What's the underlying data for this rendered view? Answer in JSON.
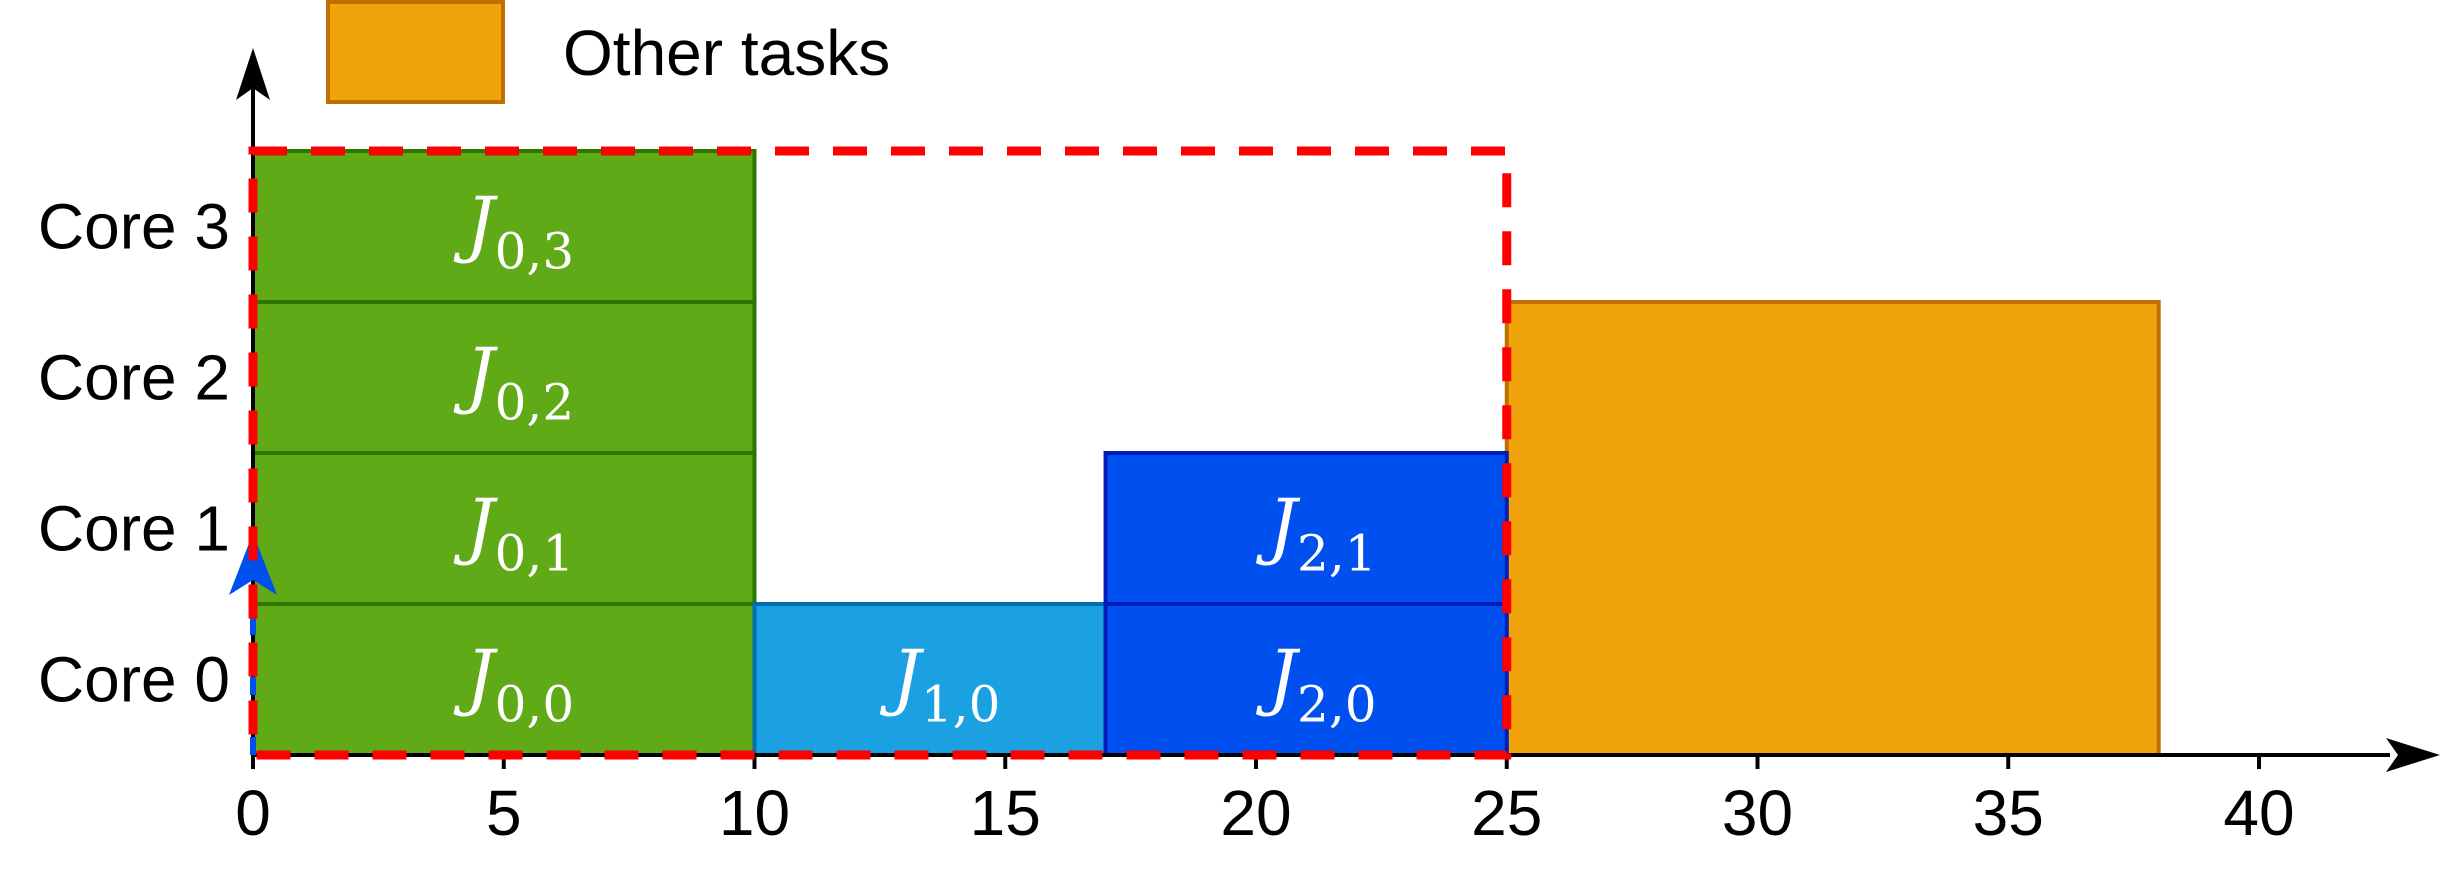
{
  "legend": {
    "label": "Other tasks",
    "color": "#f0a30a",
    "border": "#bd7000"
  },
  "axes": {
    "x_ticks": [
      "0",
      "5",
      "10",
      "15",
      "20",
      "25",
      "30",
      "35",
      "40"
    ],
    "x_min": 0,
    "x_max": 40,
    "core_labels": [
      "Core 0",
      "Core 1",
      "Core 2",
      "Core 3"
    ]
  },
  "jobs": [
    {
      "name": "J",
      "sub": "0,0",
      "start": 0,
      "end": 10,
      "core": 0,
      "color": "#60a917",
      "border": "#2d7600"
    },
    {
      "name": "J",
      "sub": "0,1",
      "start": 0,
      "end": 10,
      "core": 1,
      "color": "#60a917",
      "border": "#2d7600"
    },
    {
      "name": "J",
      "sub": "0,2",
      "start": 0,
      "end": 10,
      "core": 2,
      "color": "#60a917",
      "border": "#2d7600"
    },
    {
      "name": "J",
      "sub": "0,3",
      "start": 0,
      "end": 10,
      "core": 3,
      "color": "#60a917",
      "border": "#2d7600"
    },
    {
      "name": "J",
      "sub": "1,0",
      "start": 10,
      "end": 17,
      "core": 0,
      "color": "#1ba1e2",
      "border": "#006eaf"
    },
    {
      "name": "J",
      "sub": "2,0",
      "start": 17,
      "end": 25,
      "core": 0,
      "color": "#0050ef",
      "border": "#001dbc"
    },
    {
      "name": "J",
      "sub": "2,1",
      "start": 17,
      "end": 25,
      "core": 1,
      "color": "#0050ef",
      "border": "#001dbc"
    }
  ],
  "other_tasks": {
    "start": 25,
    "end": 38,
    "cores_from": 0,
    "cores_to": 2,
    "color": "#f0a30a",
    "border": "#bd7000"
  },
  "dashed_region": {
    "start": 0,
    "end": 25,
    "cores": 4,
    "color": "#ff0000"
  },
  "release_arrow": {
    "time": 0,
    "color": "#0050ef"
  }
}
